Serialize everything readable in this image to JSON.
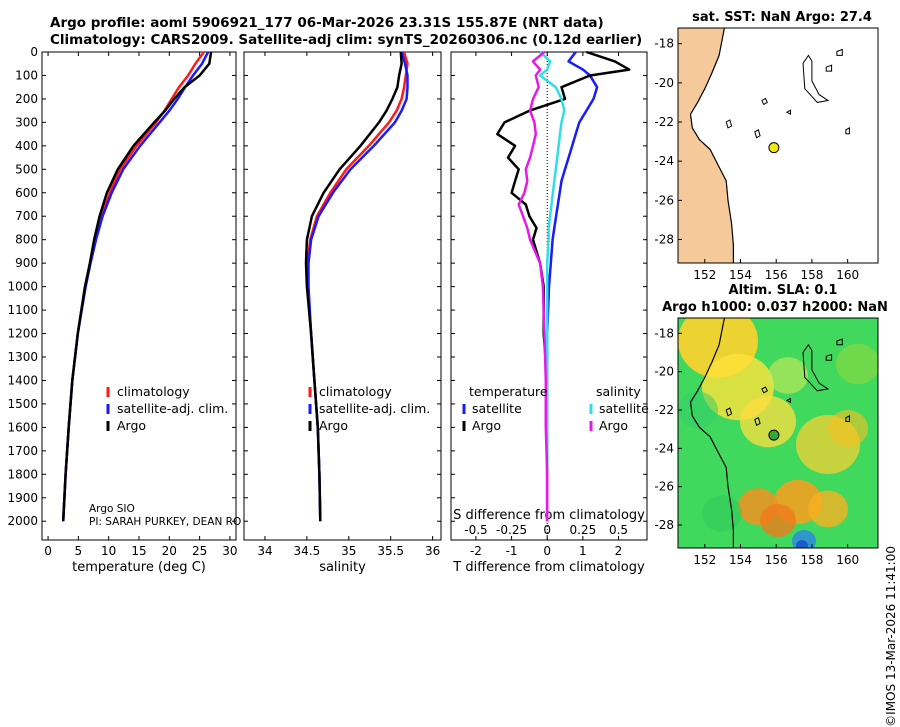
{
  "header": {
    "title_line1": "Argo profile: aoml 5906921_177 06-Mar-2026 23.31S 155.87E (NRT data)",
    "title_line2": "Climatology: CARS2009. Satellite-adj clim: synTS_20260306.nc (0.12d earlier)"
  },
  "credit": "©IMOS 13-Mar-2026 11:41:00",
  "argo_info": {
    "line1": "Argo SIO",
    "line2": "PI: SARAH PURKEY, DEAN RO"
  },
  "colors": {
    "climatology": "#ff1a1a",
    "satellite": "#1a1aff",
    "argo": "#000000",
    "sat_salinity": "#33dde6",
    "argo_salinity": "#e61ae6",
    "land": "#f6c99a"
  },
  "chart_data": [
    {
      "type": "line",
      "id": "temperature",
      "title": "",
      "xlabel": "temperature (deg C)",
      "ylabel": "",
      "xlim": [
        -1,
        31
      ],
      "ylim": [
        2080,
        0
      ],
      "xticks": [
        0,
        5,
        10,
        15,
        20,
        25,
        30
      ],
      "yticks": [
        0,
        100,
        200,
        300,
        400,
        500,
        600,
        700,
        800,
        900,
        1000,
        1100,
        1200,
        1300,
        1400,
        1500,
        1600,
        1700,
        1800,
        1900,
        2000
      ],
      "legend": [
        "climatology",
        "satellite-adj. clim.",
        "Argo"
      ],
      "depth": [
        0,
        50,
        100,
        150,
        200,
        250,
        300,
        400,
        500,
        600,
        700,
        800,
        900,
        1000,
        1200,
        1400,
        1600,
        1800,
        2000
      ],
      "series": [
        {
          "name": "climatology",
          "color": "#ff1a1a",
          "values": [
            25.7,
            24.3,
            23.1,
            21.6,
            20.4,
            19.2,
            17.8,
            14.6,
            11.9,
            10.2,
            8.8,
            7.7,
            6.9,
            6.1,
            4.9,
            4.0,
            3.4,
            2.9,
            2.5
          ]
        },
        {
          "name": "satellite-adj. clim.",
          "color": "#1a1aff",
          "values": [
            26.4,
            25.4,
            23.9,
            22.6,
            21.4,
            20.0,
            18.4,
            15.2,
            12.4,
            10.5,
            9.0,
            7.9,
            7.0,
            6.2,
            4.9,
            4.0,
            3.4,
            2.9,
            2.5
          ]
        },
        {
          "name": "Argo",
          "color": "#000000",
          "values": [
            26.9,
            26.6,
            25.0,
            22.5,
            20.8,
            19.3,
            17.5,
            14.1,
            11.5,
            9.7,
            8.5,
            7.6,
            6.9,
            6.1,
            4.9,
            4.0,
            3.4,
            2.9,
            2.5
          ]
        }
      ]
    },
    {
      "type": "line",
      "id": "salinity",
      "title": "",
      "xlabel": "salinity",
      "ylabel": "",
      "xlim": [
        33.75,
        36.1
      ],
      "ylim": [
        2080,
        0
      ],
      "xticks": [
        34,
        34.5,
        35,
        35.5,
        36
      ],
      "legend": [
        "climatology",
        "satellite-adj. clim.",
        "Argo"
      ],
      "depth": [
        0,
        50,
        100,
        150,
        200,
        250,
        300,
        400,
        500,
        600,
        700,
        800,
        900,
        1000,
        1200,
        1400,
        1600,
        1800,
        2000
      ],
      "series": [
        {
          "name": "climatology",
          "color": "#ff1a1a",
          "values": [
            35.66,
            35.7,
            35.68,
            35.66,
            35.63,
            35.57,
            35.48,
            35.24,
            34.97,
            34.78,
            34.62,
            34.54,
            34.51,
            34.51,
            34.55,
            34.59,
            34.63,
            34.65,
            34.66
          ]
        },
        {
          "name": "satellite-adj. clim.",
          "color": "#1a1aff",
          "values": [
            35.63,
            35.67,
            35.7,
            35.7,
            35.69,
            35.63,
            35.55,
            35.3,
            35.02,
            34.81,
            34.64,
            34.55,
            34.52,
            34.52,
            34.55,
            34.59,
            34.63,
            34.65,
            34.66
          ]
        },
        {
          "name": "Argo",
          "color": "#000000",
          "values": [
            35.62,
            35.63,
            35.6,
            35.58,
            35.52,
            35.45,
            35.36,
            35.14,
            34.89,
            34.7,
            34.56,
            34.5,
            34.49,
            34.5,
            34.55,
            34.59,
            34.63,
            34.65,
            34.66
          ]
        }
      ]
    },
    {
      "type": "line",
      "id": "difference",
      "title": "",
      "xlabel": "T difference from climatology",
      "x2label": "S difference from climatology",
      "xlim": [
        -2.7,
        2.8
      ],
      "ylim": [
        2080,
        0
      ],
      "xticks": [
        -2,
        -1,
        0,
        1,
        2
      ],
      "x2ticks": [
        "-0.5",
        "-0.25",
        "0",
        "0.25",
        "0.5"
      ],
      "x2tick_values": [
        -0.5,
        -0.25,
        0,
        0.25,
        0.5
      ],
      "x2_scale": 4,
      "legend_headers": [
        "temperature",
        "salinity"
      ],
      "legend": [
        "satellite",
        "Argo",
        "satellite",
        "Argo"
      ],
      "depth": [
        0,
        40,
        75,
        100,
        150,
        200,
        250,
        300,
        350,
        400,
        450,
        500,
        550,
        600,
        650,
        700,
        750,
        800,
        900,
        1000,
        1200,
        1400,
        1600,
        1800,
        2000
      ],
      "series": [
        {
          "name": "temperature satellite",
          "color": "#1a1aff",
          "values": [
            0.8,
            0.6,
            1.0,
            1.2,
            1.4,
            1.3,
            1.1,
            0.9,
            0.8,
            0.7,
            0.6,
            0.5,
            0.4,
            0.35,
            0.3,
            0.25,
            0.2,
            0.15,
            0.1,
            0.05,
            0.0,
            0.0,
            0.0,
            0.0,
            0.0
          ]
        },
        {
          "name": "temperature Argo",
          "color": "#000000",
          "values": [
            1.1,
            1.9,
            2.3,
            1.2,
            0.4,
            0.5,
            -0.5,
            -1.2,
            -1.4,
            -0.9,
            -1.1,
            -0.8,
            -0.9,
            -1.0,
            -0.6,
            -0.5,
            -0.3,
            -0.4,
            -0.2,
            -0.1,
            -0.1,
            0.0,
            0.0,
            0.0,
            0.0
          ]
        },
        {
          "name": "salinity satellite",
          "color": "#33dde6",
          "values": [
            -0.05,
            0.02,
            0.0,
            -0.05,
            0.06,
            0.1,
            0.12,
            0.1,
            0.09,
            0.08,
            0.07,
            0.06,
            0.05,
            0.04,
            0.03,
            0.02,
            0.01,
            0.01,
            0.0,
            0.0,
            0.0,
            0.0,
            0.0,
            0.0,
            0.0
          ]
        },
        {
          "name": "salinity Argo",
          "color": "#e61ae6",
          "values": [
            -0.02,
            -0.1,
            -0.05,
            -0.08,
            -0.06,
            -0.1,
            -0.12,
            -0.09,
            -0.08,
            -0.1,
            -0.12,
            -0.15,
            -0.14,
            -0.16,
            -0.2,
            -0.17,
            -0.14,
            -0.12,
            -0.05,
            -0.03,
            -0.02,
            -0.01,
            -0.01,
            0.0,
            0.0
          ]
        }
      ]
    }
  ],
  "maps": [
    {
      "id": "sst",
      "title_line1": "sat. SST: NaN Argo: 27.4",
      "title_line2": "",
      "lon_ticks": [
        152,
        154,
        156,
        158,
        160
      ],
      "lat_ticks": [
        -18,
        -20,
        -22,
        -24,
        -26,
        -28
      ],
      "lon_range": [
        150.5,
        161.7
      ],
      "lat_range": [
        -29.2,
        -17.2
      ],
      "marker": {
        "lon": 155.87,
        "lat": -23.31,
        "color": "#f2e610"
      }
    },
    {
      "id": "sla",
      "title_line1": "Altim. SLA: 0.1",
      "title_line2": "Argo h1000: 0.037 h2000: NaN",
      "lon_ticks": [
        152,
        154,
        156,
        158,
        160
      ],
      "lat_ticks": [
        -18,
        -20,
        -22,
        -24,
        -26,
        -28
      ],
      "lon_range": [
        150.5,
        161.7
      ],
      "lat_range": [
        -29.2,
        -17.2
      ],
      "marker": {
        "lon": 155.87,
        "lat": -23.31,
        "color": "#33aa33"
      }
    }
  ]
}
